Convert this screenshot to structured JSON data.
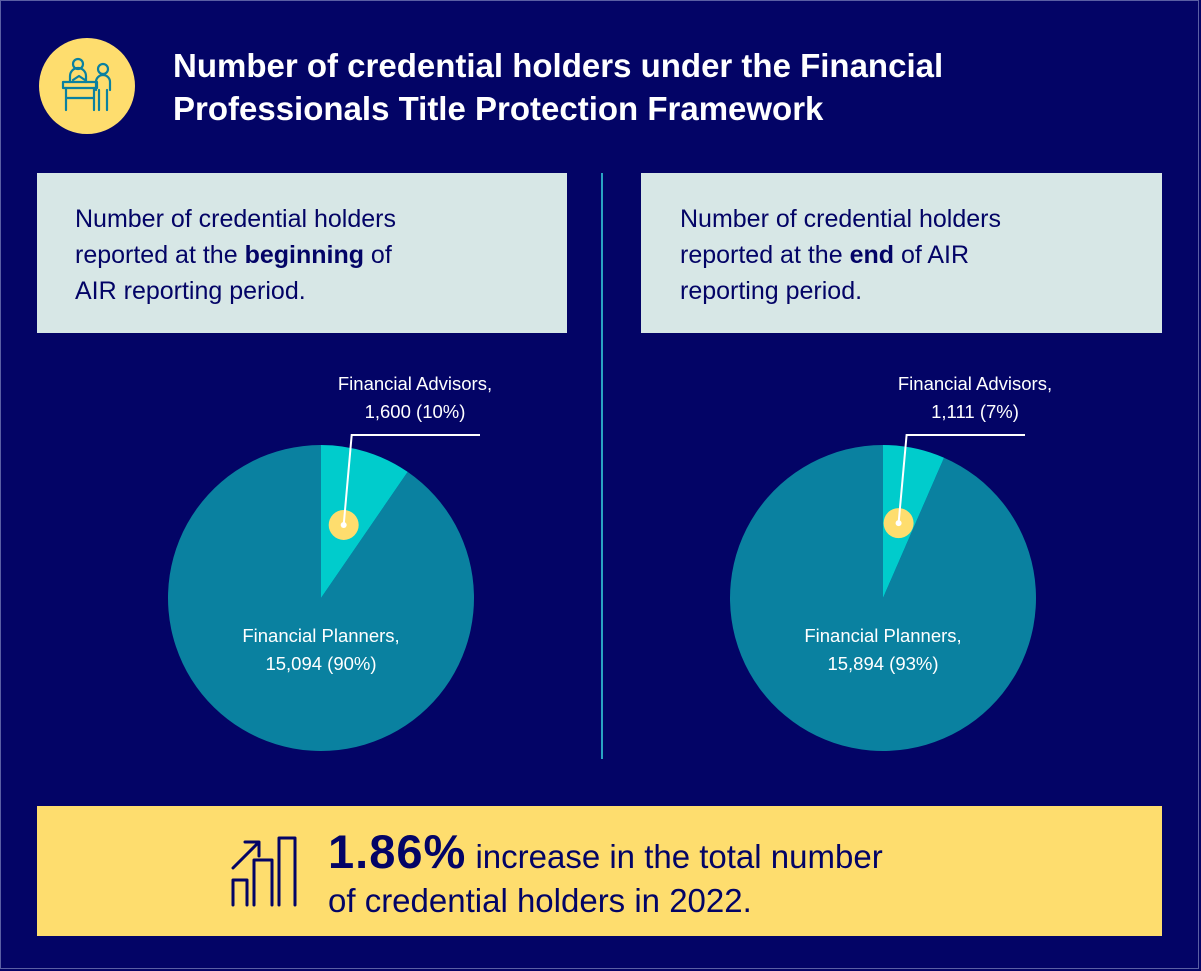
{
  "title": {
    "line1": "Number of credential holders under the Financial",
    "line2": "Professionals Title Protection Framework"
  },
  "colors": {
    "background": "#030466",
    "panel": "#d7e7e6",
    "accent_yellow": "#fedd6e",
    "planners": "#0a81a0",
    "advisors": "#00cccc",
    "divider": "#2aa3c2"
  },
  "icons": {
    "header": "meeting-desk-icon",
    "banner": "growth-bar-chart-icon"
  },
  "panels": [
    {
      "line1": "Number of credential holders",
      "line2_pre": "reported at the ",
      "line2_bold": "beginning",
      "line2_post": " of",
      "line3": "AIR reporting period."
    },
    {
      "line1": "Number of credential holders",
      "line2_pre": "reported at the ",
      "line2_bold": "end",
      "line2_post": " of AIR",
      "line3": "reporting period."
    }
  ],
  "chart_data": [
    {
      "type": "pie",
      "slices": [
        {
          "name": "Financial Advisors",
          "value": 1600,
          "percent": 10,
          "label_line1": "Financial Advisors,",
          "label_line2": "1,600 (10%)"
        },
        {
          "name": "Financial Planners",
          "value": 15094,
          "percent": 90,
          "label_line1": "Financial Planners,",
          "label_line2": "15,094 (90%)"
        }
      ]
    },
    {
      "type": "pie",
      "slices": [
        {
          "name": "Financial Advisors",
          "value": 1111,
          "percent": 7,
          "label_line1": "Financial Advisors,",
          "label_line2": "1,111 (7%)"
        },
        {
          "name": "Financial Planners",
          "value": 15894,
          "percent": 93,
          "label_line1": "Financial Planners,",
          "label_line2": "15,894 (93%)"
        }
      ]
    }
  ],
  "banner": {
    "stat": "1.86%",
    "text_line1": " increase in the total number",
    "text_line2": "of credential holders in 2022."
  }
}
